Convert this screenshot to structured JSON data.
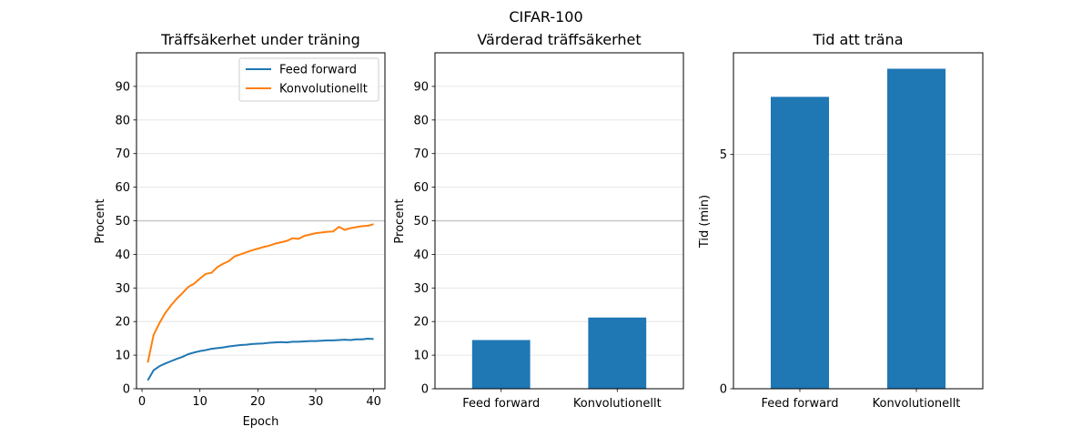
{
  "suptitle": "CIFAR-100",
  "chart_data": [
    {
      "type": "line",
      "title": "Träffsäkerhet under träning",
      "xlabel": "Epoch",
      "ylabel": "Procent",
      "xlim": [
        -0.95,
        41.95
      ],
      "ylim": [
        0,
        100
      ],
      "xticks": [
        0,
        10,
        20,
        30,
        40
      ],
      "yticks": [
        0,
        10,
        20,
        30,
        40,
        50,
        60,
        70,
        80,
        90
      ],
      "grid": "y",
      "reference_line": 50,
      "legend": "top-right",
      "series": [
        {
          "name": "Feed forward",
          "color": "#1f77b4",
          "x": [
            1,
            2,
            3,
            4,
            5,
            6,
            7,
            8,
            9,
            10,
            11,
            12,
            13,
            14,
            15,
            16,
            17,
            18,
            19,
            20,
            21,
            22,
            23,
            24,
            25,
            26,
            27,
            28,
            29,
            30,
            31,
            32,
            33,
            34,
            35,
            36,
            37,
            38,
            39,
            40
          ],
          "values": [
            2.5,
            5.5,
            6.7,
            7.5,
            8.2,
            8.9,
            9.5,
            10.3,
            10.8,
            11.2,
            11.5,
            11.9,
            12.1,
            12.3,
            12.6,
            12.8,
            13.0,
            13.1,
            13.3,
            13.4,
            13.5,
            13.7,
            13.8,
            13.9,
            13.8,
            14.0,
            14.0,
            14.1,
            14.2,
            14.2,
            14.3,
            14.4,
            14.4,
            14.5,
            14.6,
            14.5,
            14.7,
            14.7,
            14.9,
            14.8
          ]
        },
        {
          "name": "Konvolutionellt",
          "color": "#ff7f0e",
          "x": [
            1,
            2,
            3,
            4,
            5,
            6,
            7,
            8,
            9,
            10,
            11,
            12,
            13,
            14,
            15,
            16,
            17,
            18,
            19,
            20,
            21,
            22,
            23,
            24,
            25,
            26,
            27,
            28,
            29,
            30,
            31,
            32,
            33,
            34,
            35,
            36,
            37,
            38,
            39,
            40
          ],
          "values": [
            7.8,
            16.0,
            19.5,
            22.5,
            24.8,
            26.8,
            28.5,
            30.3,
            31.3,
            32.8,
            34.2,
            34.5,
            36.2,
            37.2,
            38.0,
            39.4,
            40.0,
            40.6,
            41.2,
            41.7,
            42.2,
            42.6,
            43.2,
            43.6,
            44.0,
            44.8,
            44.6,
            45.5,
            45.9,
            46.3,
            46.5,
            46.7,
            46.8,
            48.2,
            47.3,
            47.8,
            48.1,
            48.4,
            48.5,
            49.0
          ]
        }
      ]
    },
    {
      "type": "bar",
      "title": "Värderad träffsäkerhet",
      "xlabel": "",
      "ylabel": "Procent",
      "categories": [
        "Feed forward",
        "Konvolutionellt"
      ],
      "values": [
        14.5,
        21.2
      ],
      "ylim": [
        0,
        100
      ],
      "yticks": [
        0,
        10,
        20,
        30,
        40,
        50,
        60,
        70,
        80,
        90
      ],
      "grid": "y",
      "reference_line": 50,
      "color": "#1f77b4"
    },
    {
      "type": "bar",
      "title": "Tid att träna",
      "xlabel": "",
      "ylabel": "Tid (min)",
      "categories": [
        "Feed forward",
        "Konvolutionellt"
      ],
      "values": [
        6.23,
        6.83
      ],
      "ylim": [
        0,
        7.17
      ],
      "yticks": [
        0,
        5
      ],
      "grid": "y",
      "color": "#1f77b4"
    }
  ]
}
